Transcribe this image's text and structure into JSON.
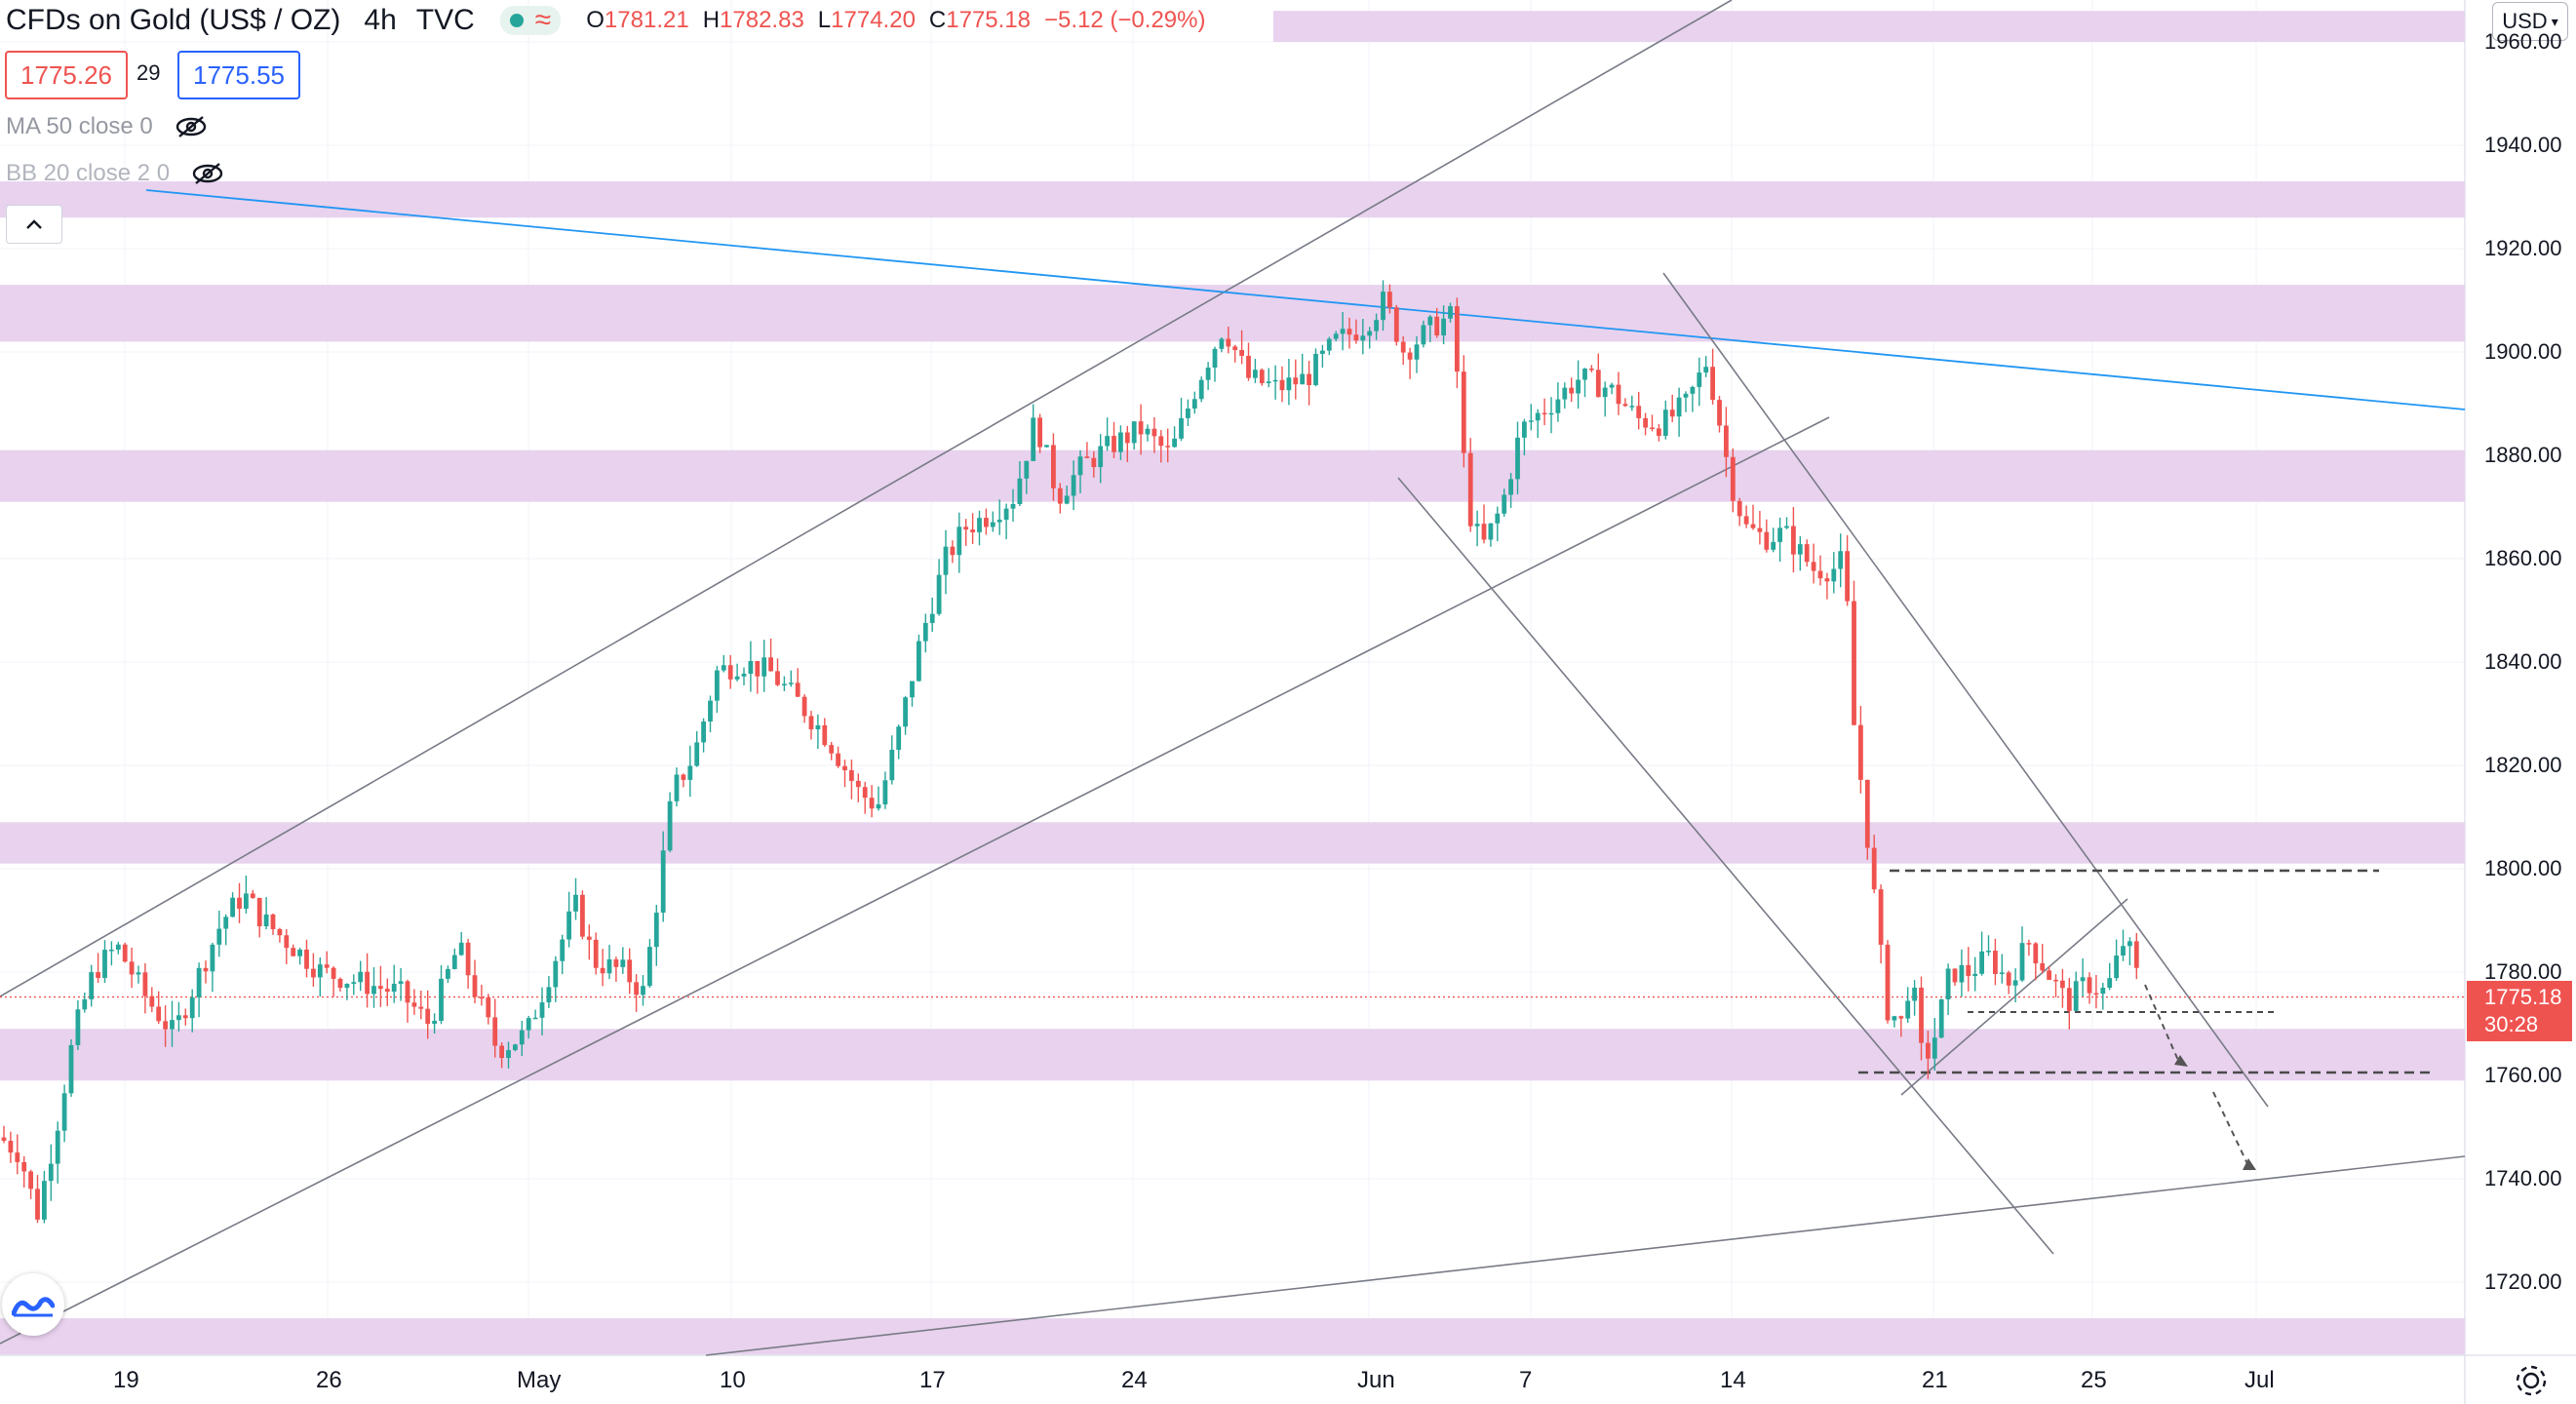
{
  "header": {
    "symbol": "CFDs on Gold (US$ / OZ)",
    "timeframe": "4h",
    "source": "TVC",
    "open_label": "O",
    "open": "1781.21",
    "high_label": "H",
    "high": "1782.83",
    "low_label": "L",
    "low": "1774.20",
    "close_label": "C",
    "close": "1775.18",
    "change": "−5.12 (−0.29%)"
  },
  "quotes": {
    "bid": "1775.26",
    "spread": "29",
    "ask": "1775.55"
  },
  "indicators": [
    {
      "label": "MA 50 close 0"
    },
    {
      "label": "BB 20 close 2 0"
    }
  ],
  "currency_button": "USD",
  "price_axis": {
    "labels": [
      "1960.00",
      "1940.00",
      "1920.00",
      "1900.00",
      "1880.00",
      "1860.00",
      "1840.00",
      "1820.00",
      "1800.00",
      "1780.00",
      "1760.00",
      "1740.00",
      "1720.00"
    ],
    "last_price": "1775.18",
    "countdown": "30:28"
  },
  "time_axis": {
    "labels": [
      "19",
      "26",
      "May",
      "10",
      "17",
      "24",
      "Jun",
      "7",
      "14",
      "21",
      "25",
      "Jul"
    ]
  },
  "colors": {
    "up": "#26a69a",
    "down": "#ef5350",
    "zone": "#e1bee7",
    "trendline_blue": "#2196f3",
    "drawing_line": "#787b86",
    "last_price_line": "#ef5350"
  },
  "icons": [
    "eye-off-icon",
    "chevron-up-icon",
    "tradingview-logo-icon",
    "gear-icon"
  ],
  "chart_data": {
    "type": "candlestick",
    "title": "CFDs on Gold (US$ / OZ)",
    "timeframe": "4h",
    "y_range": [
      1708,
      1962
    ],
    "candles": []
  }
}
